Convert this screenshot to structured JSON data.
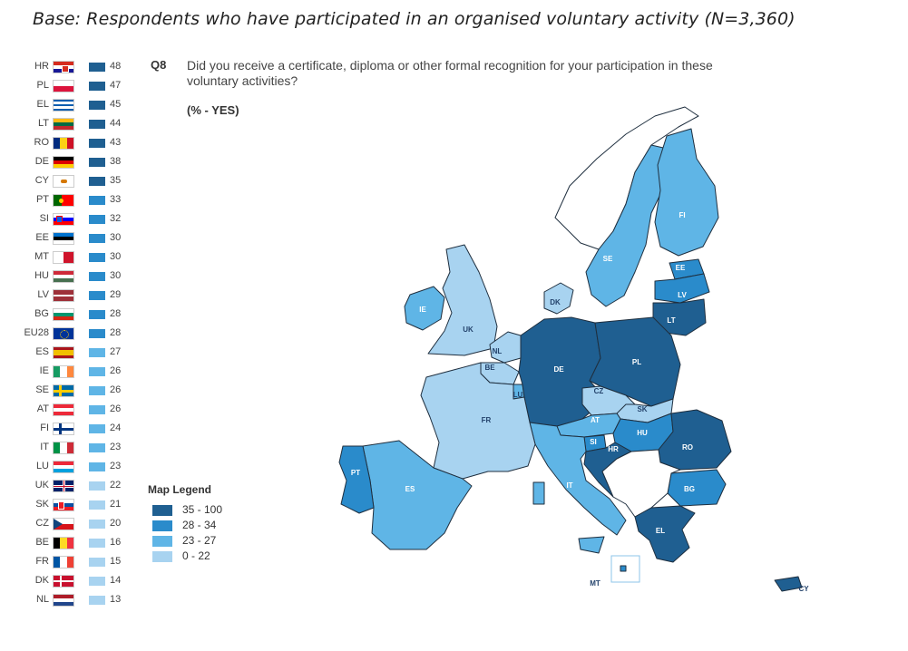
{
  "base_text": "Base: Respondents who have participated in an organised voluntary activity (N=3,360)",
  "question": {
    "code": "Q8",
    "text": "Did you receive a certificate, diploma or other formal recognition for your participation in these voluntary activities?",
    "subtitle": "(% - YES)"
  },
  "colors": {
    "c1": "#1f5f91",
    "c2": "#2a8bcb",
    "c3": "#5fb5e6",
    "c4": "#a8d3f0",
    "border": "#1f2f3f",
    "non_eu": "#ffffff"
  },
  "countries": [
    {
      "code": "HR",
      "value": "48",
      "band": "c1"
    },
    {
      "code": "PL",
      "value": "47",
      "band": "c1"
    },
    {
      "code": "EL",
      "value": "45",
      "band": "c1"
    },
    {
      "code": "LT",
      "value": "44",
      "band": "c1"
    },
    {
      "code": "RO",
      "value": "43",
      "band": "c1"
    },
    {
      "code": "DE",
      "value": "38",
      "band": "c1"
    },
    {
      "code": "CY",
      "value": "35",
      "band": "c1"
    },
    {
      "code": "PT",
      "value": "33",
      "band": "c2"
    },
    {
      "code": "SI",
      "value": "32",
      "band": "c2"
    },
    {
      "code": "EE",
      "value": "30",
      "band": "c2"
    },
    {
      "code": "MT",
      "value": "30",
      "band": "c2"
    },
    {
      "code": "HU",
      "value": "30",
      "band": "c2"
    },
    {
      "code": "LV",
      "value": "29",
      "band": "c2"
    },
    {
      "code": "BG",
      "value": "28",
      "band": "c2"
    },
    {
      "code": "EU28",
      "value": "28",
      "band": "c2"
    },
    {
      "code": "ES",
      "value": "27",
      "band": "c3"
    },
    {
      "code": "IE",
      "value": "26",
      "band": "c3"
    },
    {
      "code": "SE",
      "value": "26",
      "band": "c3"
    },
    {
      "code": "AT",
      "value": "26",
      "band": "c3"
    },
    {
      "code": "FI",
      "value": "24",
      "band": "c3"
    },
    {
      "code": "IT",
      "value": "23",
      "band": "c3"
    },
    {
      "code": "LU",
      "value": "23",
      "band": "c3"
    },
    {
      "code": "UK",
      "value": "22",
      "band": "c4"
    },
    {
      "code": "SK",
      "value": "21",
      "band": "c4"
    },
    {
      "code": "CZ",
      "value": "20",
      "band": "c4"
    },
    {
      "code": "BE",
      "value": "16",
      "band": "c4"
    },
    {
      "code": "FR",
      "value": "15",
      "band": "c4"
    },
    {
      "code": "DK",
      "value": "14",
      "band": "c4"
    },
    {
      "code": "NL",
      "value": "13",
      "band": "c4"
    }
  ],
  "legend": {
    "title": "Map Legend",
    "items": [
      {
        "label": "35 - 100",
        "band": "c1"
      },
      {
        "label": "28 - 34",
        "band": "c2"
      },
      {
        "label": "23 - 27",
        "band": "c3"
      },
      {
        "label": "0 - 22",
        "band": "c4"
      }
    ]
  },
  "map_labels": [
    "FI",
    "SE",
    "EE",
    "LV",
    "LT",
    "DK",
    "IE",
    "UK",
    "NL",
    "BE",
    "LU",
    "DE",
    "PL",
    "CZ",
    "SK",
    "AT",
    "HU",
    "SI",
    "HR",
    "RO",
    "FR",
    "PT",
    "ES",
    "IT",
    "BG",
    "EL",
    "MT",
    "CY"
  ]
}
